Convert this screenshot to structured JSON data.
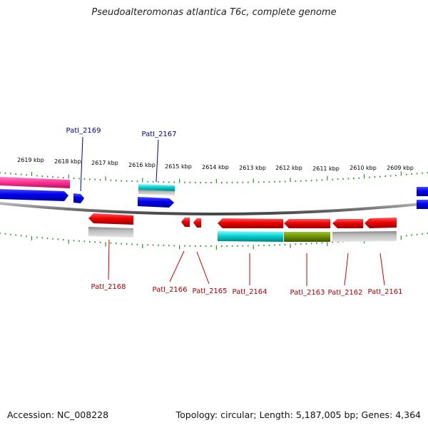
{
  "title": "Pseudoalteromonas atlantica T6c, complete genome",
  "footer": {
    "accession": "Accession: NC_008228",
    "summary": "Topology: circular; Length: 5,187,005 bp; Genes: 4,364"
  },
  "colors": {
    "forward": "#0000ee",
    "reverse": "#ee0000",
    "pink": "#ff2f92",
    "cyan": "#00cccc",
    "olive": "#6b8e00",
    "gray": "#aaaaaa",
    "tick": "#229922",
    "backbone": "#777777",
    "label_forward": "#000099",
    "label_reverse": "#aa0000"
  },
  "scale_labels": [
    "2619 kbp",
    "2618 kbp",
    "2617 kbp",
    "2616 kbp",
    "2615 kbp",
    "2614 kbp",
    "2613 kbp",
    "2612 kbp",
    "2611 kbp",
    "2610 kbp",
    "2609 kbp"
  ],
  "forward_labels": [
    "PatI_2169",
    "PatI_2167"
  ],
  "reverse_labels": [
    "PatI_2168",
    "PatI_2166",
    "PatI_2165",
    "PatI_2164",
    "PatI_2163",
    "PatI_2162",
    "PatI_2161"
  ]
}
